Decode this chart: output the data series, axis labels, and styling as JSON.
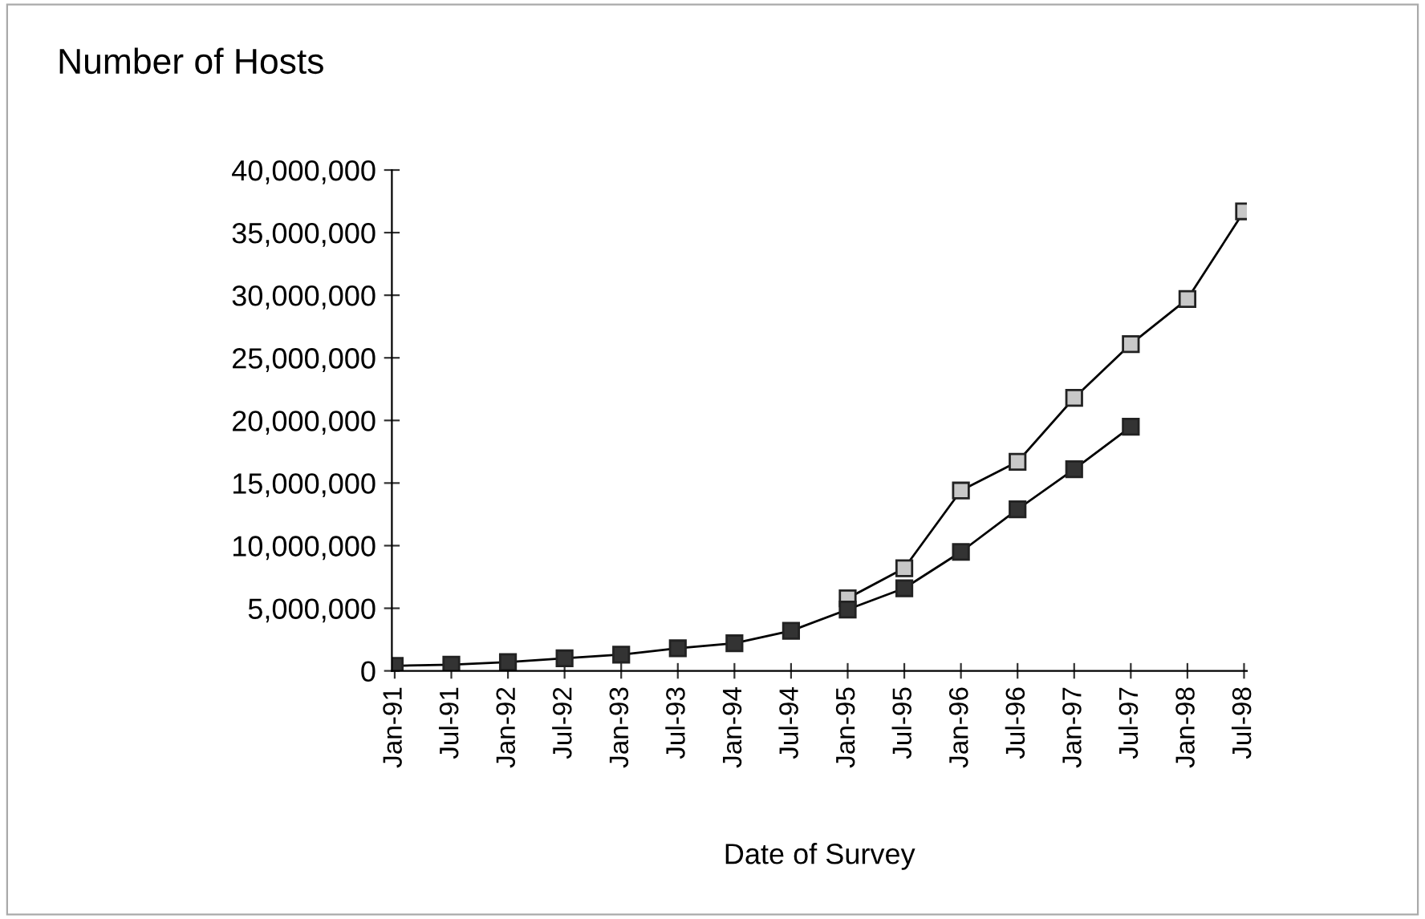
{
  "chart_data": {
    "type": "line",
    "title": "Number of Hosts",
    "xlabel": "Date of Survey",
    "categories": [
      "Jan-91",
      "Jul-91",
      "Jan-92",
      "Jul-92",
      "Jan-93",
      "Jul-93",
      "Jan-94",
      "Jul-94",
      "Jan-95",
      "Jul-95",
      "Jan-96",
      "Jul-96",
      "Jan-97",
      "Jul-97",
      "Jan-98",
      "Jul-98"
    ],
    "series": [
      {
        "color": "#c8c8c8",
        "values": [
          null,
          null,
          null,
          null,
          null,
          null,
          null,
          null,
          5800000,
          8200000,
          14400000,
          16700000,
          21800000,
          26100000,
          29700000,
          36700000
        ]
      },
      {
        "color": "#333333",
        "values": [
          400000,
          500000,
          700000,
          1000000,
          1300000,
          1800000,
          2200000,
          3200000,
          4900000,
          6600000,
          9500000,
          12900000,
          16100000,
          19500000,
          null,
          null
        ]
      }
    ],
    "ylim": [
      0,
      40000000
    ],
    "yticks": [
      0,
      {
        "value": 5000000,
        "label": "5,000,000"
      },
      {
        "value": 10000000,
        "label": "10,000,000"
      },
      {
        "value": 15000000,
        "label": "15,000,000"
      },
      {
        "value": 20000000,
        "label": "20,000,000"
      },
      {
        "value": 25000000,
        "label": "25,000,000"
      },
      {
        "value": 30000000,
        "label": "30,000,000"
      },
      {
        "value": 35000000,
        "label": "35,000,000"
      },
      {
        "value": 40000000,
        "label": "40,000,000"
      }
    ],
    "grid": false,
    "legend": false,
    "marker": "square",
    "line_style": "solid"
  }
}
